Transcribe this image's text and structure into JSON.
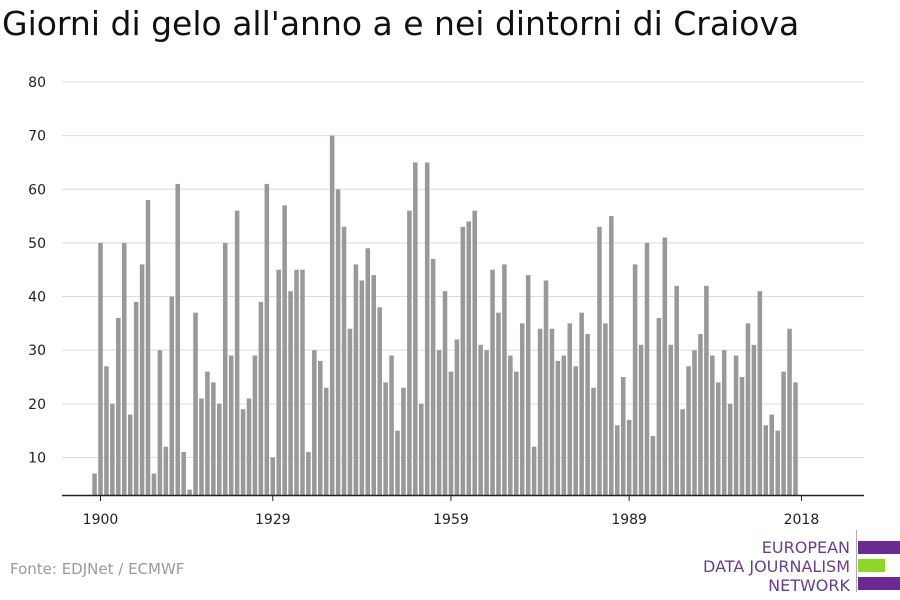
{
  "title": "Giorni di gelo all'anno a e nei dintorni di Craiova",
  "source": "Fonte: EDJNet / ECMWF",
  "logo": {
    "lines": [
      "EUROPEAN",
      "DATA JOURNALISM",
      "NETWORK"
    ],
    "colors": {
      "purple": "#6a2a8f",
      "green": "#8ed62a"
    }
  },
  "colors": {
    "bar": "#999999",
    "grid": "#dddddd",
    "axis": "#222222"
  },
  "chart_data": {
    "type": "bar",
    "title": "Giorni di gelo all'anno a e nei dintorni di Craiova",
    "xlabel": "",
    "ylabel": "",
    "x_start": 1899,
    "xticks": [
      1900,
      1929,
      1959,
      1989,
      2018
    ],
    "yticks": [
      10,
      20,
      30,
      40,
      50,
      60,
      70,
      80
    ],
    "ylim": [
      3,
      80
    ],
    "grid": true,
    "values": [
      7,
      50,
      27,
      20,
      36,
      50,
      18,
      39,
      46,
      58,
      7,
      30,
      12,
      40,
      61,
      11,
      4,
      37,
      21,
      26,
      24,
      20,
      50,
      29,
      56,
      19,
      21,
      29,
      39,
      61,
      10,
      45,
      57,
      41,
      45,
      45,
      11,
      30,
      28,
      23,
      70,
      60,
      53,
      34,
      46,
      43,
      49,
      44,
      38,
      24,
      29,
      15,
      23,
      56,
      65,
      20,
      65,
      47,
      30,
      41,
      26,
      32,
      53,
      54,
      56,
      31,
      30,
      45,
      37,
      46,
      29,
      26,
      35,
      44,
      12,
      34,
      43,
      34,
      28,
      29,
      35,
      27,
      37,
      33,
      23,
      53,
      35,
      55,
      16,
      25,
      17,
      46,
      31,
      50,
      14,
      36,
      51,
      31,
      42,
      19,
      27,
      30,
      33,
      42,
      29,
      24,
      30,
      20,
      29,
      25,
      35,
      31,
      41,
      16,
      18,
      15,
      26,
      34,
      24
    ]
  }
}
